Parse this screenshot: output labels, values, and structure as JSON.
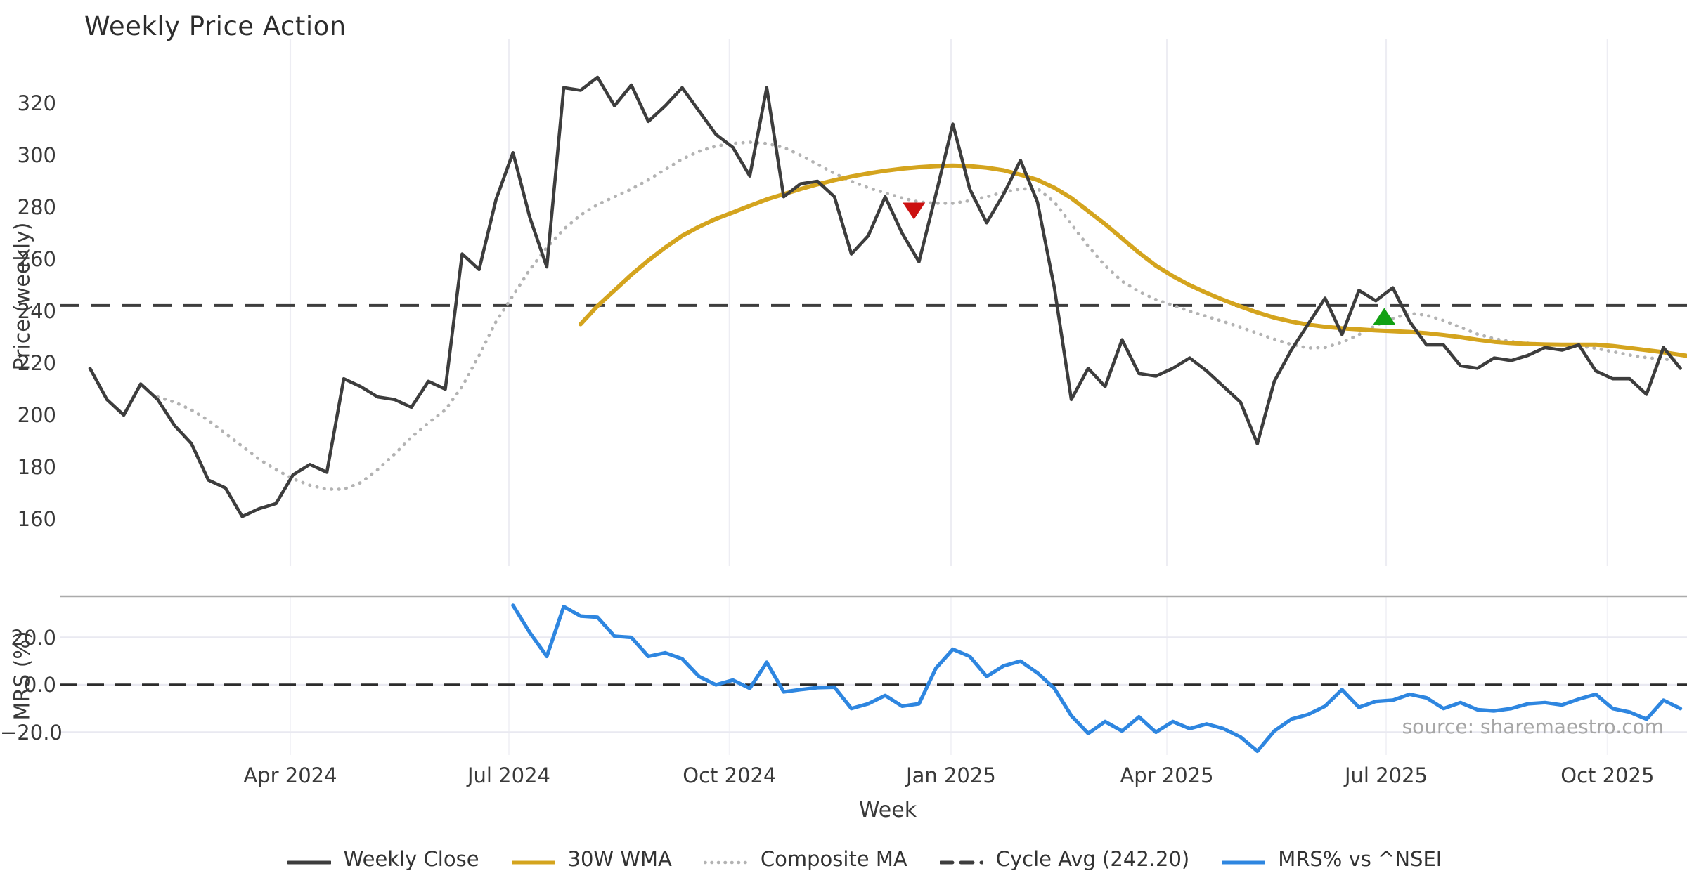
{
  "title": "Weekly Price Action",
  "source_note": "source: sharemaestro.com",
  "colors": {
    "weekly_close": "#3d3d3d",
    "wma_30w": "#d4a41e",
    "composite_ma": "#b3b3b3",
    "cycle_avg": "#3d3d3d",
    "mrs_line": "#2e86e0",
    "sell_marker": "#cc1111",
    "buy_marker": "#12a012",
    "gridline": "#ededf3",
    "panel_border": "#ababab",
    "zero_gridline": "#e9e9f1"
  },
  "price_axis": {
    "label": "Price (weekly)",
    "ticks": [
      320,
      300,
      280,
      260,
      240,
      220,
      200,
      180,
      160
    ]
  },
  "mrs_axis": {
    "label": "MRS (%)",
    "ticks": [
      "20.0",
      "0.0",
      "−20.0"
    ],
    "tick_values": [
      20,
      0,
      -20
    ]
  },
  "x_axis": {
    "label": "Week",
    "ticks": [
      {
        "label": "Apr 2024",
        "week": 11.84
      },
      {
        "label": "Jul 2024",
        "week": 24.76
      },
      {
        "label": "Oct 2024",
        "week": 37.8
      },
      {
        "label": "Jan 2025",
        "week": 50.89
      },
      {
        "label": "Apr 2025",
        "week": 63.65
      },
      {
        "label": "Jul 2025",
        "week": 76.61
      },
      {
        "label": "Oct 2025",
        "week": 89.69
      }
    ]
  },
  "legend": {
    "items": [
      {
        "label": "Weekly Close",
        "style": "solid",
        "color": "#3d3d3d"
      },
      {
        "label": "30W WMA",
        "style": "solid",
        "color": "#d4a41e"
      },
      {
        "label": "Composite MA",
        "style": "dotted",
        "color": "#b3b3b3"
      },
      {
        "label": "Cycle Avg (242.20)",
        "style": "dashed",
        "color": "#3d3d3d"
      },
      {
        "label": "MRS% vs ^NSEI",
        "style": "solid",
        "color": "#2e86e0"
      }
    ]
  },
  "chart_data": {
    "type": "line",
    "x_unit": "weeks (Feb 2024 - Nov 2025)",
    "panels": [
      {
        "name": "price",
        "ylabel": "Price (weekly)",
        "ylim": [
          152,
          336
        ],
        "grid": "vertical-only",
        "cycle_avg_value": 242.2,
        "series": [
          {
            "name": "Weekly Close",
            "start_week": 0,
            "values": [
              218,
              206,
              200,
              212,
              206,
              196,
              189,
              175,
              172,
              161,
              164,
              166,
              177,
              181,
              178,
              214,
              211,
              207,
              206,
              203,
              213,
              210,
              262,
              256,
              283,
              301,
              276,
              257,
              326,
              325,
              330,
              319,
              327,
              313,
              319,
              326,
              317,
              308,
              303,
              292,
              326,
              284,
              289,
              290,
              284,
              262,
              269,
              284,
              270,
              259,
              285,
              312,
              287,
              274,
              285,
              298,
              282,
              249,
              206,
              218,
              211,
              229,
              216,
              215,
              218,
              222,
              217,
              211,
              205,
              189,
              213,
              225,
              235,
              245,
              231,
              248,
              244,
              249,
              236,
              227,
              227,
              219,
              218,
              222,
              221,
              223,
              226,
              225,
              227,
              217,
              214,
              214,
              208,
              226,
              218
            ]
          },
          {
            "name": "30W WMA",
            "start_week": 29,
            "values": [
              235,
              242,
              248,
              254,
              259.5,
              264.5,
              269,
              272.5,
              275.5,
              278,
              280.5,
              283,
              285,
              287,
              288.8,
              290.4,
              291.8,
              293,
              294,
              294.8,
              295.4,
              295.8,
              296,
              295.8,
              295.2,
              294.2,
              292.5,
              290.5,
              287.5,
              283.5,
              278.5,
              273.5,
              268,
              262.5,
              257.5,
              253.5,
              250,
              247,
              244.3,
              241.8,
              239.5,
              237.5,
              236,
              234.8,
              234,
              233.4,
              233,
              232.6,
              232.3,
              232,
              231.5,
              230.8,
              230,
              229,
              228.2,
              227.7,
              227.4,
              227.2,
              227.1,
              227.1,
              227.1,
              226.6,
              225.8,
              225,
              224.2,
              223.2,
              222.2
            ]
          },
          {
            "name": "Composite MA",
            "start_week": 4,
            "values": [
              207,
              205,
              202,
              198,
              193,
              188,
              183,
              179,
              175.5,
              173,
              171.5,
              171.5,
              174,
              179,
              185,
              191.5,
              197,
              202,
              211,
              223,
              236,
              246,
              256,
              264.5,
              271.5,
              277,
              281,
              284,
              287,
              290.5,
              294.5,
              298.5,
              301.5,
              303.5,
              304.5,
              305,
              304.5,
              303,
              300,
              296.5,
              293,
              290,
              287.5,
              285.5,
              283.5,
              282,
              281.5,
              281.5,
              282.5,
              284,
              285.8,
              287,
              287.2,
              282,
              273.5,
              265,
              257.5,
              251.5,
              247.5,
              244.5,
              242.3,
              240,
              238,
              236,
              233.8,
              231.5,
              229.2,
              227.2,
              225.8,
              226,
              228,
              231,
              234.5,
              237.2,
              239.2,
              238.4,
              236.4,
              233.8,
              231.2,
              229.4,
              228.3,
              227.7,
              227.3,
              227,
              226.6,
              225.7,
              224.4,
              223.1,
              222.1,
              221.5,
              221.1
            ]
          }
        ],
        "markers": [
          {
            "name": "sell-signal",
            "shape": "triangle-down",
            "week": 48.7,
            "price": 278.5,
            "color": "#cc1111"
          },
          {
            "name": "buy-signal",
            "shape": "triangle-up",
            "week": 76.5,
            "price": 238,
            "color": "#12a012"
          }
        ]
      },
      {
        "name": "mrs",
        "ylabel": "MRS (%)",
        "ylim": [
          -32,
          37.5
        ],
        "zero_line": 0,
        "series": [
          {
            "name": "MRS% vs ^NSEI",
            "start_week": 25,
            "values": [
              33.5,
              22,
              12,
              33,
              29,
              28.5,
              20.5,
              20,
              12,
              13.5,
              11,
              3.5,
              0,
              2,
              -1.5,
              9.5,
              -3,
              -2,
              -1.2,
              -1,
              -10,
              -8,
              -4.5,
              -9,
              -8,
              7,
              15,
              12,
              3.5,
              8,
              10,
              5,
              -1.5,
              -13,
              -20.5,
              -15.5,
              -19.5,
              -13.5,
              -20,
              -15.5,
              -18.5,
              -16.5,
              -18.5,
              -22,
              -28,
              -19.5,
              -14.5,
              -12.5,
              -9,
              -2,
              -9.5,
              -7,
              -6.5,
              -4,
              -5.5,
              -10,
              -7.5,
              -10.5,
              -11,
              -10,
              -8,
              -7.5,
              -8.5,
              -6,
              -4,
              -10,
              -11.5,
              -14.5,
              -6.5,
              -10
            ]
          }
        ]
      }
    ]
  }
}
